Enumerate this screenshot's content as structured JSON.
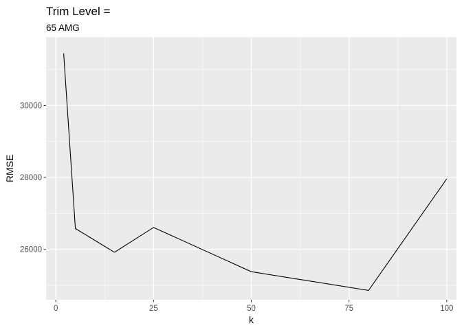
{
  "chart_data": {
    "type": "line",
    "title": "Trim Level =",
    "subtitle": "65 AMG",
    "xlabel": "k",
    "ylabel": "RMSE",
    "x_ticks": [
      0,
      25,
      50,
      75,
      100
    ],
    "y_ticks": [
      26000,
      28000,
      30000
    ],
    "x_tick_labels": [
      "0",
      "25",
      "50",
      "75",
      "100"
    ],
    "y_tick_labels": [
      "26000",
      "28000",
      "30000"
    ],
    "xlim": [
      -2.5,
      102.5
    ],
    "ylim": [
      24600,
      31900
    ],
    "grid": true,
    "series": [
      {
        "x": [
          2,
          5,
          15,
          25,
          50,
          80,
          100
        ],
        "y": [
          31450,
          26580,
          25920,
          26610,
          25380,
          24860,
          27960
        ]
      }
    ],
    "colors": {
      "panel": "#EBEBEB",
      "grid_major": "#FFFFFF",
      "line": "#000000",
      "tick": "#333333"
    }
  }
}
